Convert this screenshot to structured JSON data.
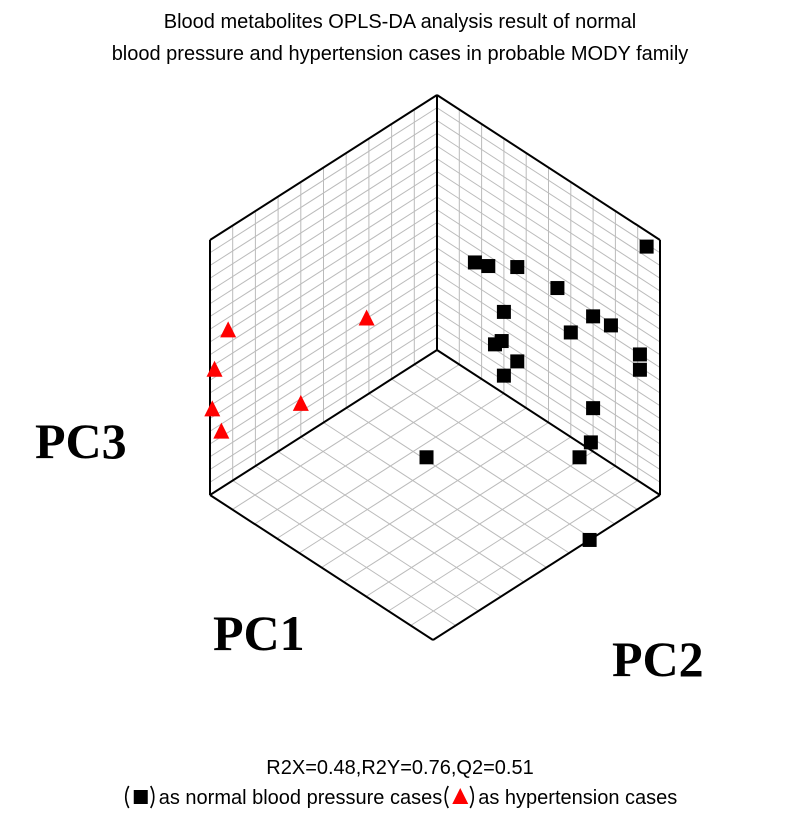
{
  "chart_data": {
    "type": "scatter3d",
    "title": [
      "Blood metabolites OPLS-DA analysis result of normal",
      "blood pressure and hypertension cases in probable MODY family"
    ],
    "xlabel": "PC1",
    "ylabel": "PC2",
    "zlabel": "PC3",
    "xlim": [
      0,
      1
    ],
    "ylim": [
      0,
      1
    ],
    "zlim": [
      0,
      1
    ],
    "annotation": "R2X=0.48,R2Y=0.76,Q2=0.51",
    "series": [
      {
        "name": "as normal blood pressure cases",
        "color": "#000000",
        "marker": "square",
        "x": [
          0,
          0,
          0,
          0,
          0,
          0,
          0,
          0,
          0,
          0,
          0,
          0,
          0,
          0,
          0,
          0,
          0,
          0.05,
          0.39,
          0.31
        ],
        "y": [
          0.17,
          0.23,
          0.36,
          0.54,
          0.94,
          0.3,
          0.7,
          0.78,
          0.6,
          0.29,
          0.26,
          0.36,
          0.3,
          0.91,
          0.91,
          0.7,
          0.69,
          0.69,
          0.35,
          1
        ],
        "z": [
          0.44,
          0.46,
          0.53,
          0.55,
          0.94,
          0.32,
          0.53,
          0.54,
          0.41,
          0.2,
          0.17,
          0.16,
          0.07,
          0.5,
          0.44,
          0.17,
          0.03,
          0,
          0,
          0
        ]
      },
      {
        "name": "as hypertension cases",
        "color": "#ff0000",
        "marker": "triangle",
        "x": [
          0.92,
          0.31,
          0.98,
          0.99,
          0.6,
          0.95
        ],
        "y": [
          0,
          0,
          0,
          0,
          0,
          0
        ],
        "z": [
          0.6,
          0.3,
          0.48,
          0.33,
          0.13,
          0.22
        ]
      }
    ]
  }
}
